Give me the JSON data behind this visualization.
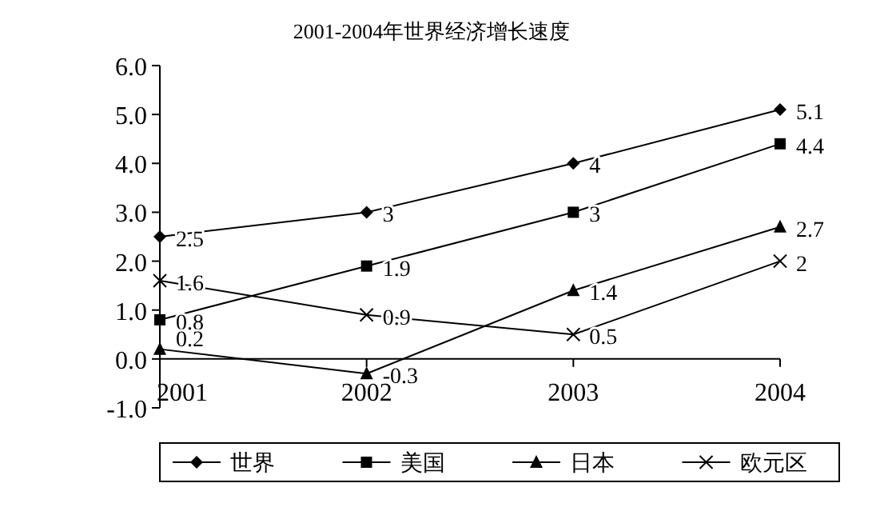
{
  "chart_data": {
    "type": "line",
    "title": "2001-2004年世界经济增长速度",
    "categories": [
      "2001",
      "2002",
      "2003",
      "2004"
    ],
    "series": [
      {
        "name": "世界",
        "color": "#000000",
        "marker": "diamond",
        "values": [
          2.5,
          3,
          4,
          5.1
        ]
      },
      {
        "name": "美国",
        "color": "#000000",
        "marker": "square",
        "values": [
          0.8,
          1.9,
          3,
          4.4
        ]
      },
      {
        "name": "日本",
        "color": "#000000",
        "marker": "triangle",
        "values": [
          0.2,
          -0.3,
          1.4,
          2.7
        ]
      },
      {
        "name": "欧元区",
        "color": "#000000",
        "marker": "cross",
        "values": [
          1.6,
          0.9,
          0.5,
          2
        ]
      }
    ],
    "ylim": [
      -1,
      6
    ],
    "yticks": [
      {
        "value": -1,
        "label": "-1.0"
      },
      {
        "value": 0,
        "label": "0.0"
      },
      {
        "value": 1,
        "label": "1.0"
      },
      {
        "value": 2,
        "label": "2.0"
      },
      {
        "value": 3,
        "label": "3.0"
      },
      {
        "value": 4,
        "label": "4.0"
      },
      {
        "value": 5,
        "label": "5.0"
      },
      {
        "value": 6,
        "label": "6.0"
      }
    ],
    "data_labels": true,
    "legend": "bottom",
    "line_style": "solid"
  }
}
